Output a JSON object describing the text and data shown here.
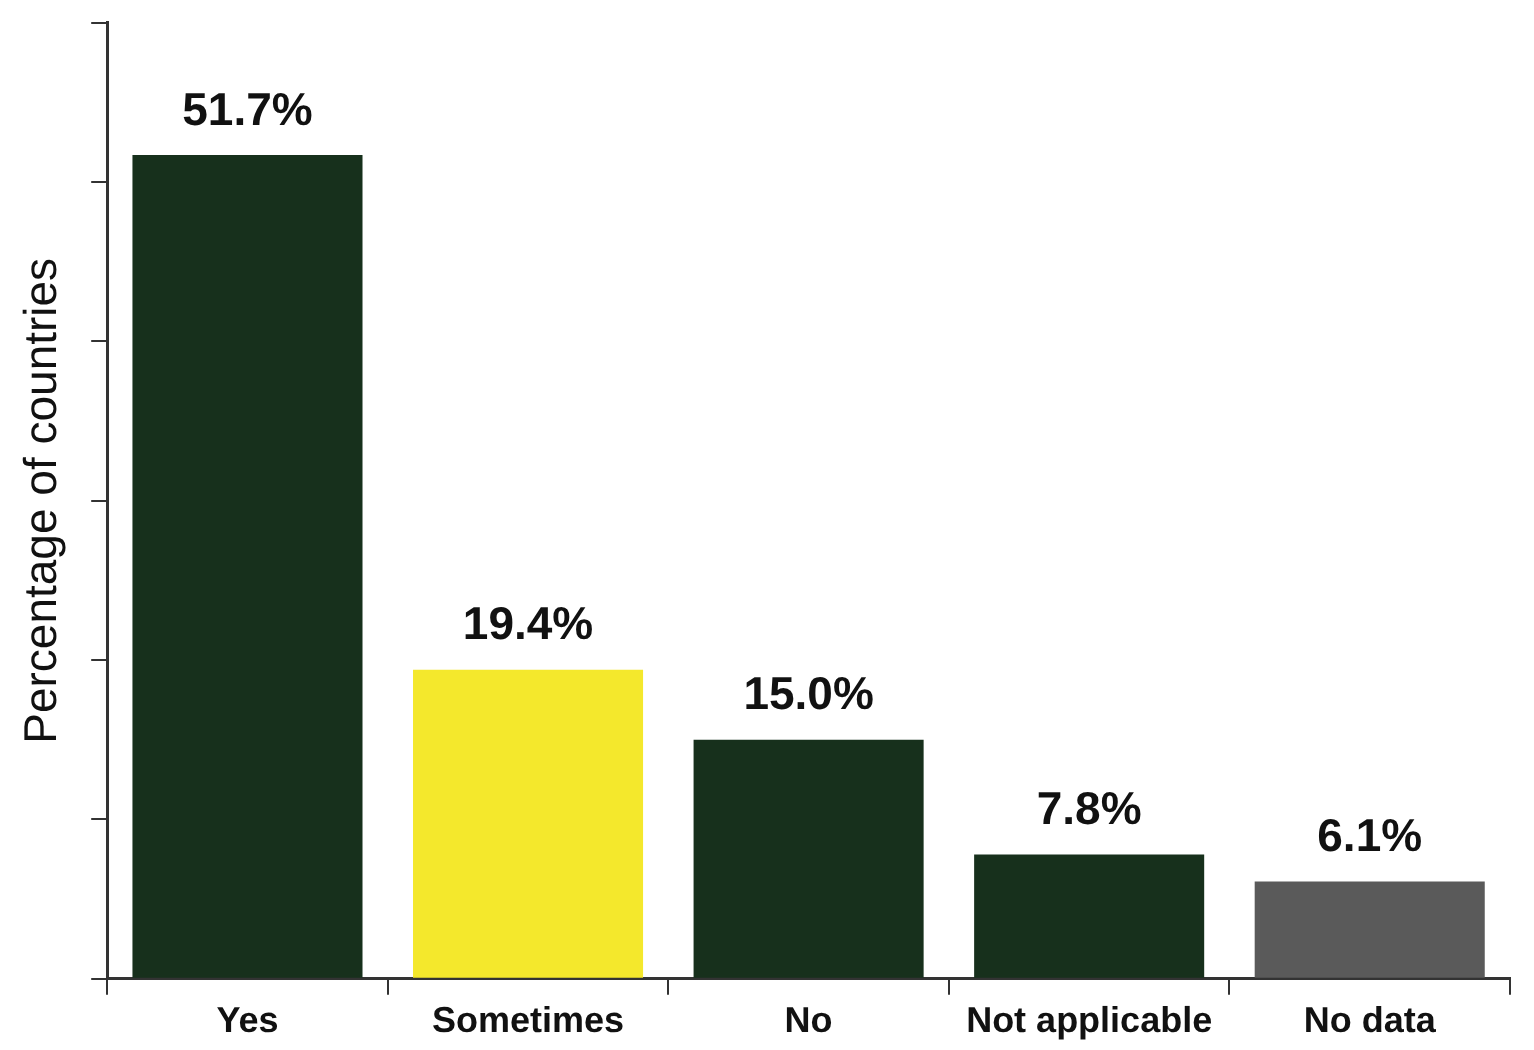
{
  "chart_data": {
    "type": "bar",
    "ylabel": "Percentage of countries",
    "categories": [
      "Yes",
      "Sometimes",
      "No",
      "Not applicable",
      "No data"
    ],
    "values": [
      51.7,
      19.4,
      15.0,
      7.8,
      6.1
    ],
    "colors": [
      "#17301c",
      "#f4e82c",
      "#17301c",
      "#17301c",
      "#5a5a5a"
    ],
    "value_labels": [
      "51.7%",
      "19.4%",
      "15.0%",
      "7.8%",
      "6.1%"
    ],
    "ylim": [
      0,
      60
    ],
    "yticks": [
      {
        "value": 0,
        "label": null
      },
      {
        "value": 10,
        "label": null
      },
      {
        "value": 20,
        "label": null
      },
      {
        "value": 30,
        "label": null
      },
      {
        "value": 40,
        "label": null
      },
      {
        "value": 50,
        "label": null
      },
      {
        "value": 60,
        "label": null
      }
    ],
    "tick_labels": "x",
    "grid": false,
    "legend": false
  }
}
